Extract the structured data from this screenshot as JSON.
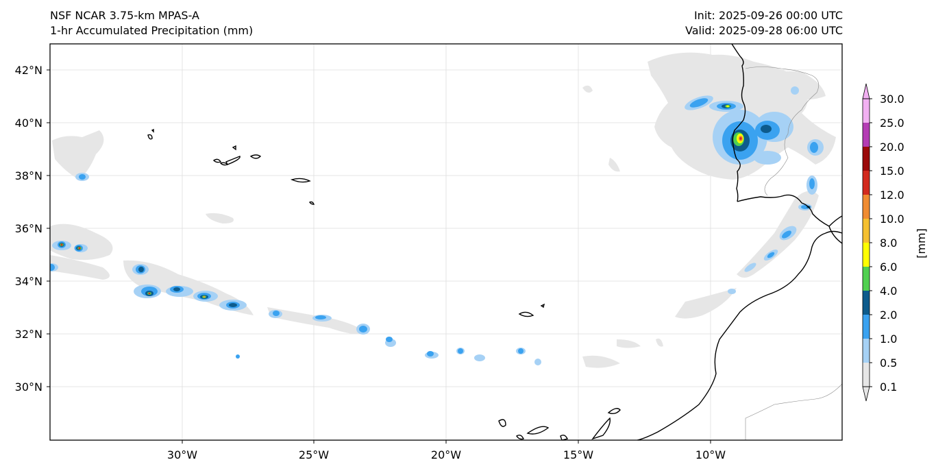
{
  "header": {
    "model_title": "NSF NCAR 3.75-km MPAS-A",
    "field_title": "1-hr Accumulated Precipitation (mm)",
    "init_time": "Init: 2025-09-26 00:00 UTC",
    "valid_time": "Valid: 2025-09-28 06:00 UTC"
  },
  "map": {
    "lon_labels": [
      "30°W",
      "25°W",
      "20°W",
      "15°W",
      "10°W"
    ],
    "lat_labels": [
      "42°N",
      "40°N",
      "38°N",
      "36°N",
      "34°N",
      "32°N",
      "30°N"
    ]
  },
  "colorbar": {
    "unit_label": "[mm]",
    "levels": [
      "0.1",
      "0.5",
      "1.0",
      "2.0",
      "4.0",
      "6.0",
      "8.0",
      "10.0",
      "12.0",
      "15.0",
      "20.0",
      "25.0",
      "30.0"
    ],
    "colors": [
      "#e6e6e6",
      "#a6d1f5",
      "#3aa2f0",
      "#0d5b8c",
      "#50d050",
      "#ffff00",
      "#f5c030",
      "#f08c32",
      "#d22a1e",
      "#9b0a0a",
      "#b43cb4",
      "#f2b0f2"
    ]
  }
}
